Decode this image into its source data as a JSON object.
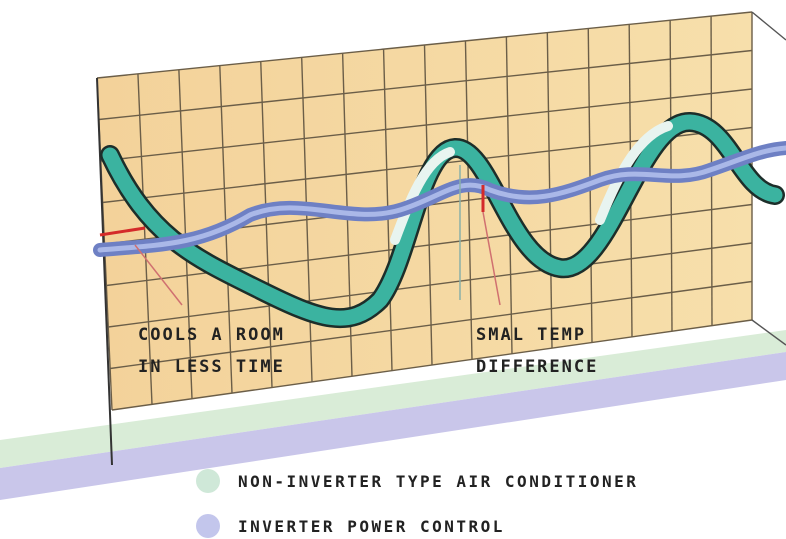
{
  "annotations": [
    {
      "lines": [
        "COOLS A ROOM",
        "IN LESS TIME"
      ]
    },
    {
      "lines": [
        "SMAL TEMP",
        "DIFFERENCE"
      ]
    }
  ],
  "legend": [
    {
      "label": "NON-INVERTER TYPE AIR CONDITIONER"
    },
    {
      "label": "INVERTER POWER CONTROL"
    }
  ]
}
